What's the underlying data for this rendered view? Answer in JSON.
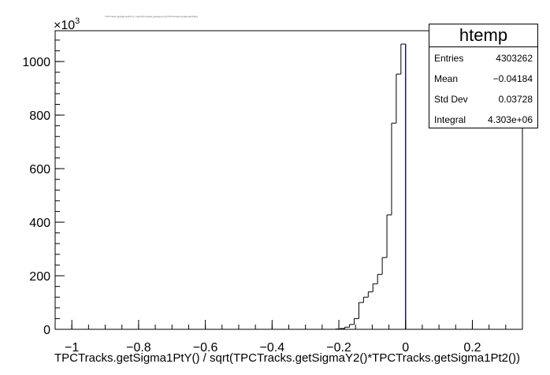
{
  "chart_data": {
    "type": "histogram",
    "title": "TPCTracks.getSigma1PtY() / sqrt(TPCTracks.getSigmaY2()*TPCTracks.getSigma1Pt2())",
    "xlabel": "TPCTracks.getSigma1PtY() / sqrt(TPCTracks.getSigmaY2()*TPCTracks.getSigma1Pt2())",
    "ylabel": "",
    "y_multiplier": "×10³",
    "xlim": [
      -1.05,
      0.35
    ],
    "ylim": [
      0,
      1115
    ],
    "x_ticks": [
      -1,
      -0.8,
      -0.6,
      -0.4,
      -0.2,
      0,
      0.2
    ],
    "x_tick_labels": [
      "−1",
      "−0.8",
      "−0.6",
      "−0.4",
      "−0.2",
      "0",
      "0.2"
    ],
    "y_ticks": [
      0,
      200,
      400,
      600,
      800,
      1000
    ],
    "y_tick_labels": [
      "0",
      "200",
      "400",
      "600",
      "800",
      "1000"
    ],
    "grid": false,
    "bin_width": 0.014,
    "bins": [
      {
        "x0": -0.21,
        "value": 1
      },
      {
        "x0": -0.196,
        "value": 3
      },
      {
        "x0": -0.182,
        "value": 8
      },
      {
        "x0": -0.168,
        "value": 18
      },
      {
        "x0": -0.154,
        "value": 40
      },
      {
        "x0": -0.14,
        "value": 100
      },
      {
        "x0": -0.126,
        "value": 120
      },
      {
        "x0": -0.112,
        "value": 140
      },
      {
        "x0": -0.098,
        "value": 170
      },
      {
        "x0": -0.084,
        "value": 205
      },
      {
        "x0": -0.07,
        "value": 268
      },
      {
        "x0": -0.056,
        "value": 427
      },
      {
        "x0": -0.042,
        "value": 770
      },
      {
        "x0": -0.028,
        "value": 953
      },
      {
        "x0": -0.014,
        "value": 1065
      },
      {
        "x0": 0.0,
        "value": 0
      }
    ],
    "line_color": "#000000",
    "vertical_line": {
      "x": 0,
      "color": "#00008b"
    }
  },
  "stats": {
    "title": "htemp",
    "rows": [
      {
        "label": "Entries",
        "value": "4303262"
      },
      {
        "label": "Mean",
        "value": "−0.04184"
      },
      {
        "label": "Std Dev",
        "value": "0.03728"
      },
      {
        "label": "Integral",
        "value": "4.303e+06"
      }
    ]
  }
}
